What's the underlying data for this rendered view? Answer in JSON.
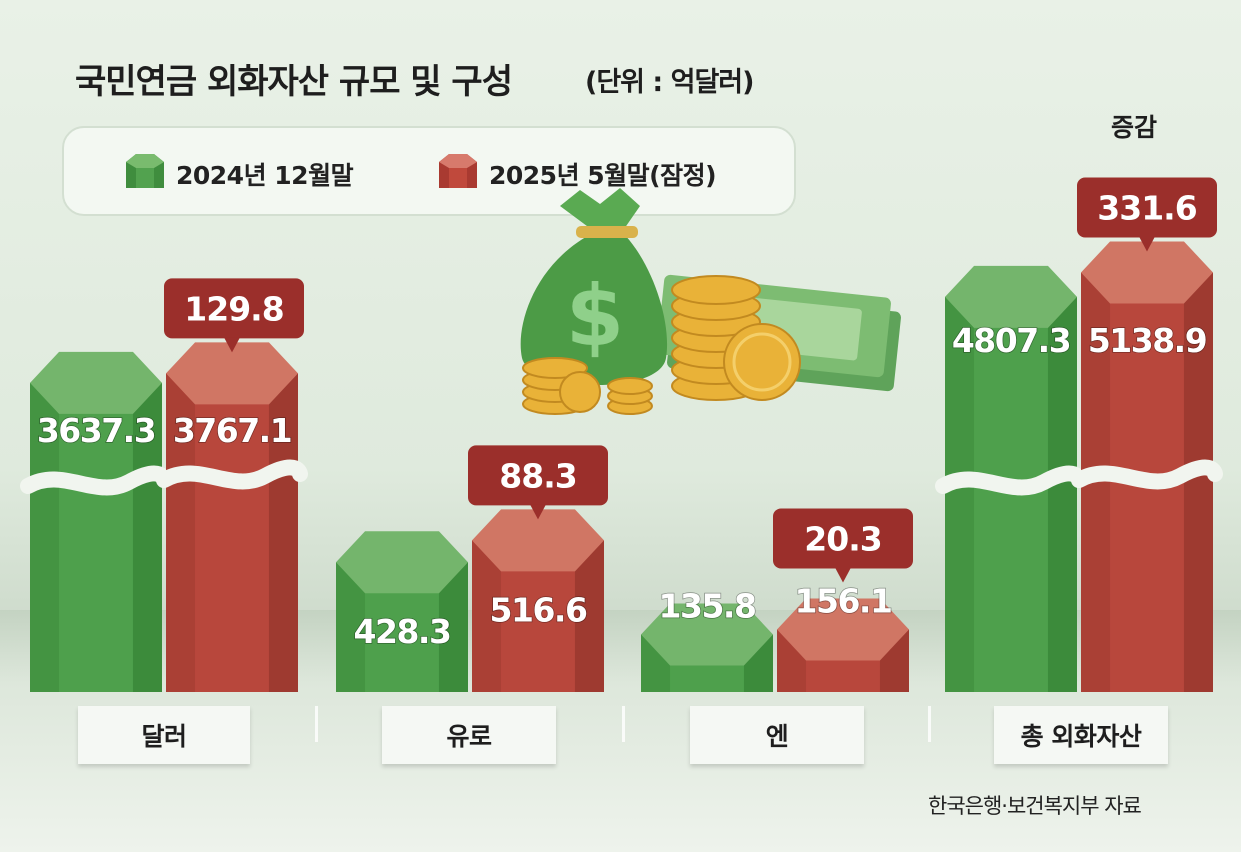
{
  "title": "국민연금 외화자산 규모 및 구성",
  "unit": "(단위 : 억달러)",
  "legend": {
    "series1": "2024년 12월말",
    "series2": "2025년 5월말(잠정)"
  },
  "change_header": "증감",
  "source": "한국은행·보건복지부 자료",
  "colors": {
    "green": "#4ea04c",
    "red": "#b8473c",
    "callout": "#9b2f2b"
  },
  "chart_data": {
    "type": "bar",
    "title": "국민연금 외화자산 규모 및 구성",
    "ylabel": "억달러",
    "categories": [
      "달러",
      "유로",
      "엔",
      "총 외화자산"
    ],
    "series": [
      {
        "name": "2024년 12월말",
        "values": [
          3637.3,
          428.3,
          135.8,
          4807.3
        ],
        "labels": [
          "3637.3",
          "428.3",
          "135.8",
          "4807.3"
        ]
      },
      {
        "name": "2025년 5월말(잠정)",
        "values": [
          3767.1,
          516.6,
          156.1,
          5138.9
        ],
        "labels": [
          "3767.1",
          "516.6",
          "156.1",
          "5138.9"
        ]
      }
    ],
    "change": {
      "values": [
        129.8,
        88.3,
        20.3,
        331.6
      ],
      "labels": [
        "129.8",
        "88.3",
        "20.3",
        "331.6"
      ]
    },
    "axis_break": [
      true,
      false,
      false,
      true
    ]
  }
}
